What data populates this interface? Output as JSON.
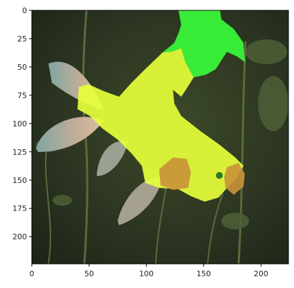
{
  "figure": {
    "x_ticks": [
      "0",
      "50",
      "100",
      "150",
      "200"
    ],
    "y_ticks": [
      "0",
      "25",
      "50",
      "75",
      "100",
      "125",
      "150",
      "175",
      "200"
    ],
    "x_range": [
      0,
      224
    ],
    "y_range": [
      0,
      224
    ],
    "overlay_colors": {
      "mask_a": "#39ff3a",
      "mask_b": "#e6ff3a",
      "mask_c": "#c8923a"
    }
  }
}
